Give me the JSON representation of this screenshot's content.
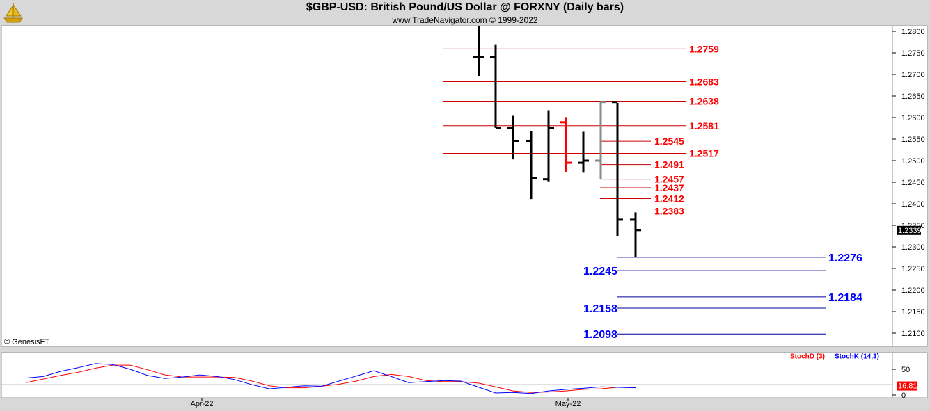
{
  "header": {
    "title": "$GBP-USD:  British Pound/US Dollar @ FORXNY  (Daily bars)",
    "subtitle": "www.TradeNavigator.com © 1999-2022",
    "logo_icon": "gold-sailboat-logo-icon"
  },
  "copyright": "© GenesisFT",
  "colors": {
    "background": "#ffffff",
    "frame": "#d8d8d8",
    "bar_default": "#000000",
    "bar_red": "#ff0000",
    "bar_gray": "#888888",
    "resistance": "#cc0000",
    "resistance_label": "#ff0000",
    "support": "#000099",
    "support_label": "#0000ff",
    "stoch_d": "#ff0000",
    "stoch_k": "#0000ff"
  },
  "chart_data": {
    "type": "ohlc",
    "y_axis": {
      "min": 1.207,
      "max": 1.283,
      "ticks": [
        "1.2800",
        "1.2750",
        "1.2700",
        "1.2650",
        "1.2600",
        "1.2550",
        "1.2500",
        "1.2450",
        "1.2400",
        "1.2350",
        "1.2300",
        "1.2250",
        "1.2200",
        "1.2150",
        "1.2100"
      ]
    },
    "last_price": "1.2339",
    "x_labels": [
      "Apr-22",
      "May-22"
    ],
    "bars": [
      {
        "x": 688,
        "o": 1.2741,
        "h": 1.2812,
        "l": 1.2696,
        "c": 1.2741,
        "color": "black"
      },
      {
        "x": 712,
        "o": 1.2741,
        "h": 1.277,
        "l": 1.2576,
        "c": 1.2576,
        "color": "black"
      },
      {
        "x": 737,
        "o": 1.2576,
        "h": 1.2604,
        "l": 1.2503,
        "c": 1.2546,
        "color": "black"
      },
      {
        "x": 763,
        "o": 1.2546,
        "h": 1.2568,
        "l": 1.2411,
        "c": 1.246,
        "color": "black"
      },
      {
        "x": 788,
        "o": 1.2457,
        "h": 1.2617,
        "l": 1.2452,
        "c": 1.2576,
        "color": "black"
      },
      {
        "x": 813,
        "o": 1.2589,
        "h": 1.2601,
        "l": 1.2474,
        "c": 1.2495,
        "color": "red"
      },
      {
        "x": 838,
        "o": 1.2495,
        "h": 1.2567,
        "l": 1.2472,
        "c": 1.25,
        "color": "black"
      },
      {
        "x": 863,
        "o": 1.25,
        "h": 1.2638,
        "l": 1.2457,
        "c": 1.2636,
        "color": "gray"
      },
      {
        "x": 887,
        "o": 1.2636,
        "h": 1.2634,
        "l": 1.2325,
        "c": 1.2363,
        "color": "black"
      },
      {
        "x": 913,
        "o": 1.2363,
        "h": 1.238,
        "l": 1.2276,
        "c": 1.2339,
        "color": "black"
      }
    ],
    "resistance_levels": [
      {
        "value": 1.2759,
        "label": "1.2759",
        "x1": 637,
        "x2": 985,
        "lx": 990
      },
      {
        "value": 1.2683,
        "label": "1.2683",
        "x1": 637,
        "x2": 985,
        "lx": 990
      },
      {
        "value": 1.2638,
        "label": "1.2638",
        "x1": 637,
        "x2": 985,
        "lx": 990
      },
      {
        "value": 1.2581,
        "label": "1.2581",
        "x1": 637,
        "x2": 985,
        "lx": 990
      },
      {
        "value": 1.2545,
        "label": "1.2545",
        "x1": 862,
        "x2": 935,
        "lx": 940
      },
      {
        "value": 1.2517,
        "label": "1.2517",
        "x1": 637,
        "x2": 985,
        "lx": 990
      },
      {
        "value": 1.2491,
        "label": "1.2491",
        "x1": 862,
        "x2": 935,
        "lx": 940
      },
      {
        "value": 1.2457,
        "label": "1.2457",
        "x1": 862,
        "x2": 935,
        "lx": 940
      },
      {
        "value": 1.2437,
        "label": "1.2437",
        "x1": 862,
        "x2": 935,
        "lx": 940
      },
      {
        "value": 1.2412,
        "label": "1.2412",
        "x1": 862,
        "x2": 935,
        "lx": 940
      },
      {
        "value": 1.2383,
        "label": "1.2383",
        "x1": 862,
        "x2": 935,
        "lx": 940
      }
    ],
    "support_levels": [
      {
        "value": 1.2276,
        "label": "1.2276",
        "x1": 887,
        "x2": 1187,
        "side": "right"
      },
      {
        "value": 1.2245,
        "label": "1.2245",
        "x1": 887,
        "x2": 1187,
        "side": "left"
      },
      {
        "value": 1.2184,
        "label": "1.2184",
        "x1": 887,
        "x2": 1187,
        "side": "right"
      },
      {
        "value": 1.2158,
        "label": "1.2158",
        "x1": 887,
        "x2": 1187,
        "side": "left"
      },
      {
        "value": 1.2098,
        "label": "1.2098",
        "x1": 887,
        "x2": 1187,
        "side": "left"
      }
    ],
    "stochastic": {
      "legend_d": "StochD (3)",
      "legend_k": "StochK (14,3)",
      "y_ticks": [
        "50",
        "0"
      ],
      "y_range": [
        0,
        100
      ],
      "last_value": "16.81",
      "x": [
        37,
        62,
        87,
        112,
        137,
        162,
        187,
        212,
        237,
        262,
        287,
        312,
        337,
        362,
        387,
        412,
        437,
        462,
        487,
        512,
        537,
        562,
        587,
        612,
        637,
        662,
        688,
        712,
        737,
        763,
        788,
        813,
        838,
        863,
        887,
        913
      ],
      "k": [
        33,
        36,
        46,
        53,
        61,
        59,
        50,
        38,
        32,
        35,
        39,
        36,
        30,
        20,
        12,
        15,
        18,
        17,
        27,
        37,
        47,
        36,
        24,
        26,
        28,
        27,
        15,
        4,
        5,
        3,
        8,
        11,
        13,
        16,
        15,
        14
      ],
      "d": [
        24,
        31,
        38,
        44,
        52,
        58,
        58,
        49,
        39,
        35,
        35,
        35,
        34,
        27,
        18,
        14,
        14,
        17,
        21,
        27,
        36,
        40,
        36,
        28,
        26,
        26,
        23,
        16,
        8,
        5,
        6,
        8,
        11,
        12,
        15,
        15
      ]
    }
  }
}
